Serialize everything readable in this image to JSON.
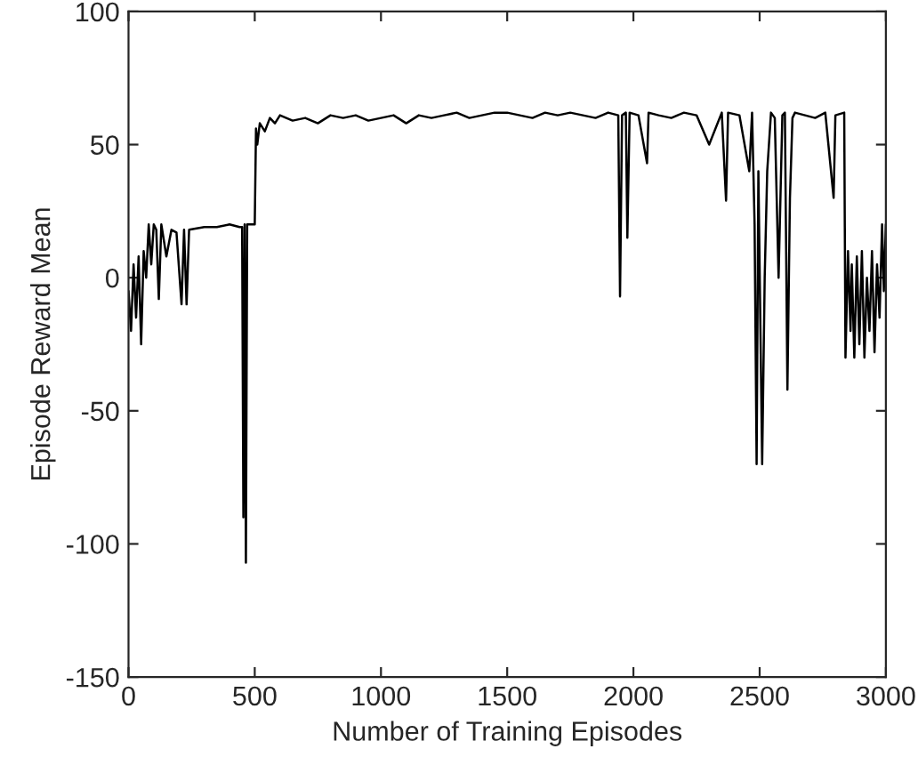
{
  "chart_data": {
    "type": "line",
    "xlabel": "Number of Training Episodes",
    "ylabel": "Episode Reward Mean",
    "xlim": [
      0,
      3000
    ],
    "ylim": [
      -150,
      100
    ],
    "xticks": [
      0,
      500,
      1000,
      1500,
      2000,
      2500,
      3000
    ],
    "yticks": [
      -150,
      -100,
      -50,
      0,
      50,
      100
    ],
    "grid": false,
    "legend": false,
    "marker": "none",
    "line_style": "solid",
    "series": [
      {
        "color": "#000000",
        "x": [
          0,
          10,
          20,
          30,
          40,
          50,
          60,
          70,
          80,
          90,
          100,
          110,
          120,
          130,
          150,
          170,
          190,
          210,
          220,
          230,
          240,
          300,
          350,
          400,
          440,
          450,
          455,
          460,
          465,
          470,
          500,
          505,
          510,
          520,
          540,
          560,
          580,
          600,
          650,
          700,
          750,
          800,
          850,
          900,
          950,
          1000,
          1050,
          1100,
          1150,
          1200,
          1250,
          1300,
          1350,
          1400,
          1450,
          1500,
          1550,
          1600,
          1650,
          1700,
          1750,
          1800,
          1850,
          1900,
          1940,
          1947,
          1955,
          1970,
          1976,
          1985,
          2020,
          2054,
          2060,
          2100,
          2150,
          2200,
          2250,
          2300,
          2350,
          2367,
          2375,
          2420,
          2459,
          2470,
          2480,
          2488,
          2495,
          2510,
          2520,
          2530,
          2545,
          2560,
          2575,
          2590,
          2600,
          2610,
          2620,
          2630,
          2640,
          2680,
          2720,
          2760,
          2793,
          2800,
          2835,
          2840,
          2850,
          2860,
          2865,
          2875,
          2885,
          2895,
          2905,
          2915,
          2925,
          2935,
          2945,
          2955,
          2965,
          2975,
          2985,
          2992,
          3000
        ],
        "values": [
          -5,
          -20,
          5,
          -15,
          8,
          -25,
          10,
          0,
          20,
          5,
          20,
          18,
          -8,
          20,
          8,
          18,
          17,
          -10,
          18,
          -10,
          18,
          19,
          19,
          20,
          19,
          19,
          -90,
          20,
          -107,
          20,
          20,
          56,
          50,
          58,
          55,
          60,
          58,
          61,
          59,
          60,
          58,
          61,
          60,
          61,
          59,
          60,
          61,
          58,
          61,
          60,
          61,
          62,
          60,
          61,
          62,
          62,
          61,
          60,
          62,
          61,
          62,
          61,
          60,
          62,
          61,
          -7,
          61,
          62,
          15,
          62,
          61,
          43,
          62,
          61,
          60,
          62,
          61,
          50,
          62,
          29,
          62,
          61,
          40,
          62,
          20,
          -70,
          40,
          -70,
          0,
          40,
          62,
          60,
          0,
          61,
          62,
          -42,
          30,
          60,
          62,
          61,
          60,
          62,
          30,
          61,
          62,
          -30,
          10,
          -20,
          5,
          -30,
          8,
          -25,
          10,
          -30,
          0,
          -20,
          10,
          -28,
          5,
          -15,
          20,
          -5,
          20
        ]
      }
    ]
  }
}
